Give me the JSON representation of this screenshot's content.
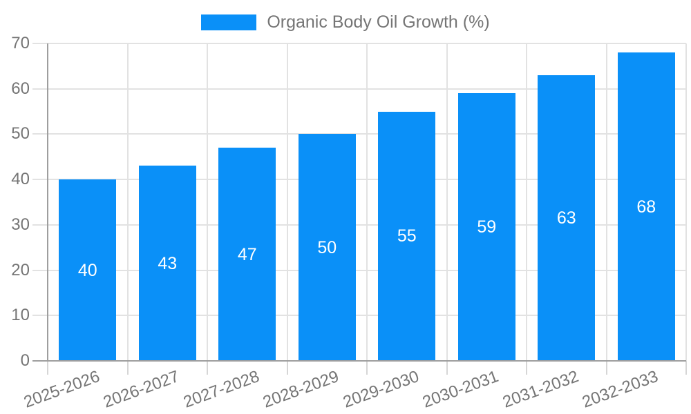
{
  "chart_data": {
    "type": "bar",
    "title": "Organic Body Oil Growth (%)",
    "legend_entries": [
      "Organic Body Oil Growth (%)"
    ],
    "legend_position": "top",
    "categories": [
      "2025-2026",
      "2026-2027",
      "2027-2028",
      "2028-2029",
      "2029-2030",
      "2030-2031",
      "2031-2032",
      "2032-2033"
    ],
    "values": [
      40,
      43,
      47,
      50,
      55,
      59,
      63,
      68
    ],
    "value_labels": [
      "40",
      "43",
      "47",
      "50",
      "55",
      "59",
      "63",
      "68"
    ],
    "xlabel": "",
    "ylabel": "",
    "ylim": [
      0,
      70
    ],
    "ytick_step": 10,
    "yticks": [
      "0",
      "10",
      "20",
      "30",
      "40",
      "50",
      "60",
      "70"
    ],
    "grid": true,
    "bar_color": "#0a90f8",
    "bar_label_color": "#ffffff",
    "axis_label_color": "#757575"
  }
}
